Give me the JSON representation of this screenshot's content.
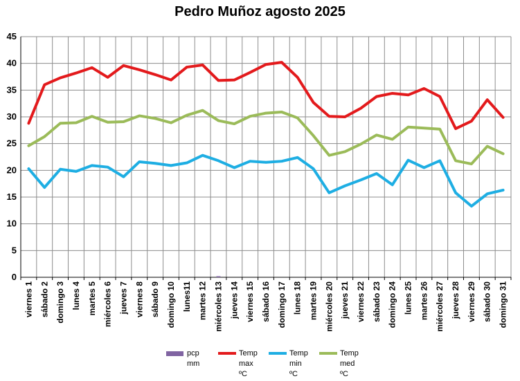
{
  "chart_data": {
    "type": "line",
    "title": "Pedro Muñoz agosto 2025",
    "xlabel": "",
    "ylabel": "",
    "ylim": [
      0,
      45
    ],
    "yticks": [
      0,
      5,
      10,
      15,
      20,
      25,
      30,
      35,
      40,
      45
    ],
    "grid": true,
    "legend_position": "bottom",
    "categories": [
      "viernes 1",
      "sábado 2",
      "domingo 3",
      "lunes 4",
      "martes 5",
      "miércoles 6",
      "jueves 7",
      "viernes 8",
      "sábado 9",
      "domingo 10",
      "lunes11",
      "martes 12",
      "miércoles 13",
      "jueves 14",
      "viernes 15",
      "sábado 16",
      "domingo 17",
      "lunes 18",
      "martes 19",
      "miércoles 20",
      "jueves 21",
      "viernes 22",
      "sábado 23",
      "domingo 24",
      "lunes 25",
      "martes 26",
      "miércoles 27",
      "jueves 28",
      "viernes 29",
      "sábado 30",
      "domingo 31"
    ],
    "series": [
      {
        "name": "pcp mm",
        "kind": "bar",
        "color": "#8064a2",
        "values": [
          0,
          0,
          0,
          0,
          0,
          0,
          0,
          0,
          0,
          0,
          0,
          0,
          0.2,
          0,
          0,
          0,
          0,
          0,
          0,
          0,
          0,
          0,
          0,
          0,
          0,
          0,
          0,
          0,
          0,
          0,
          0
        ]
      },
      {
        "name": "Temp max ºC",
        "kind": "line",
        "color": "#e31a1c",
        "values": [
          28.8,
          36.0,
          37.3,
          38.2,
          39.2,
          37.4,
          39.6,
          38.8,
          37.9,
          36.9,
          39.3,
          39.7,
          36.8,
          36.9,
          38.3,
          39.8,
          40.2,
          37.4,
          32.7,
          30.1,
          30.0,
          31.6,
          33.8,
          34.4,
          34.1,
          35.3,
          33.8,
          27.8,
          29.2,
          33.2,
          29.9
        ]
      },
      {
        "name": "Temp min ºC",
        "kind": "line",
        "color": "#1eaee3",
        "values": [
          20.3,
          16.8,
          20.2,
          19.8,
          20.9,
          20.6,
          18.8,
          21.6,
          21.3,
          20.9,
          21.4,
          22.8,
          21.8,
          20.5,
          21.7,
          21.5,
          21.7,
          22.4,
          20.3,
          15.8,
          17.1,
          18.2,
          19.4,
          17.3,
          21.9,
          20.5,
          21.8,
          15.8,
          13.3,
          15.6,
          16.3
        ]
      },
      {
        "name": "Temp med ºC",
        "kind": "line",
        "color": "#9bbb59",
        "values": [
          24.6,
          26.3,
          28.8,
          28.9,
          30.1,
          29.0,
          29.1,
          30.2,
          29.7,
          28.9,
          30.3,
          31.2,
          29.3,
          28.7,
          30.1,
          30.7,
          30.9,
          29.8,
          26.5,
          22.8,
          23.5,
          24.9,
          26.6,
          25.8,
          28.1,
          27.9,
          27.7,
          21.8,
          21.2,
          24.5,
          23.1
        ]
      }
    ],
    "legend": [
      {
        "lines": [
          "pcp",
          "mm"
        ],
        "color": "#8064a2",
        "symbol": "box"
      },
      {
        "lines": [
          "Temp",
          "max",
          "ºC"
        ],
        "color": "#e31a1c",
        "symbol": "line"
      },
      {
        "lines": [
          "Temp",
          "min",
          "ºC"
        ],
        "color": "#1eaee3",
        "symbol": "line"
      },
      {
        "lines": [
          "Temp",
          "med",
          "ºC"
        ],
        "color": "#9bbb59",
        "symbol": "line"
      }
    ]
  }
}
